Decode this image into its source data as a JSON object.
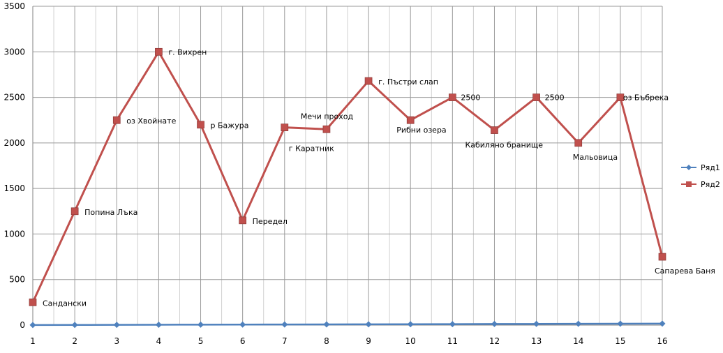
{
  "chart_data": {
    "type": "line",
    "x": [
      1,
      2,
      3,
      4,
      5,
      6,
      7,
      8,
      9,
      10,
      11,
      12,
      13,
      14,
      15,
      16
    ],
    "ylim": [
      0,
      3500
    ],
    "yticks": [
      0,
      500,
      1000,
      1500,
      2000,
      2500,
      3000,
      3500
    ],
    "grid": true,
    "legend_position": "right",
    "series": [
      {
        "name": "Ряд1",
        "color": "#4F81BD",
        "marker": "diamond",
        "values": [
          1,
          2,
          3,
          4,
          5,
          6,
          7,
          8,
          9,
          10,
          11,
          12,
          13,
          14,
          15,
          16
        ]
      },
      {
        "name": "Ряд2",
        "color": "#C0504D",
        "marker": "square",
        "values": [
          250,
          1250,
          2250,
          3000,
          2200,
          1150,
          2170,
          2150,
          2680,
          2250,
          2500,
          2140,
          2500,
          2000,
          2500,
          750
        ],
        "labels": [
          "Сандански",
          "Попина Лъка",
          "оз Хвойнате",
          "г. Вихрен",
          "р Бажура",
          "Передел",
          "г Каратник",
          "Мечи проход",
          "г. Пъстри слап",
          "Рибни озера",
          "2500",
          "Кабиляно бранище",
          "2500",
          "Мальовица",
          "оз Бъбрека",
          "Сапарева Баня"
        ]
      }
    ]
  }
}
